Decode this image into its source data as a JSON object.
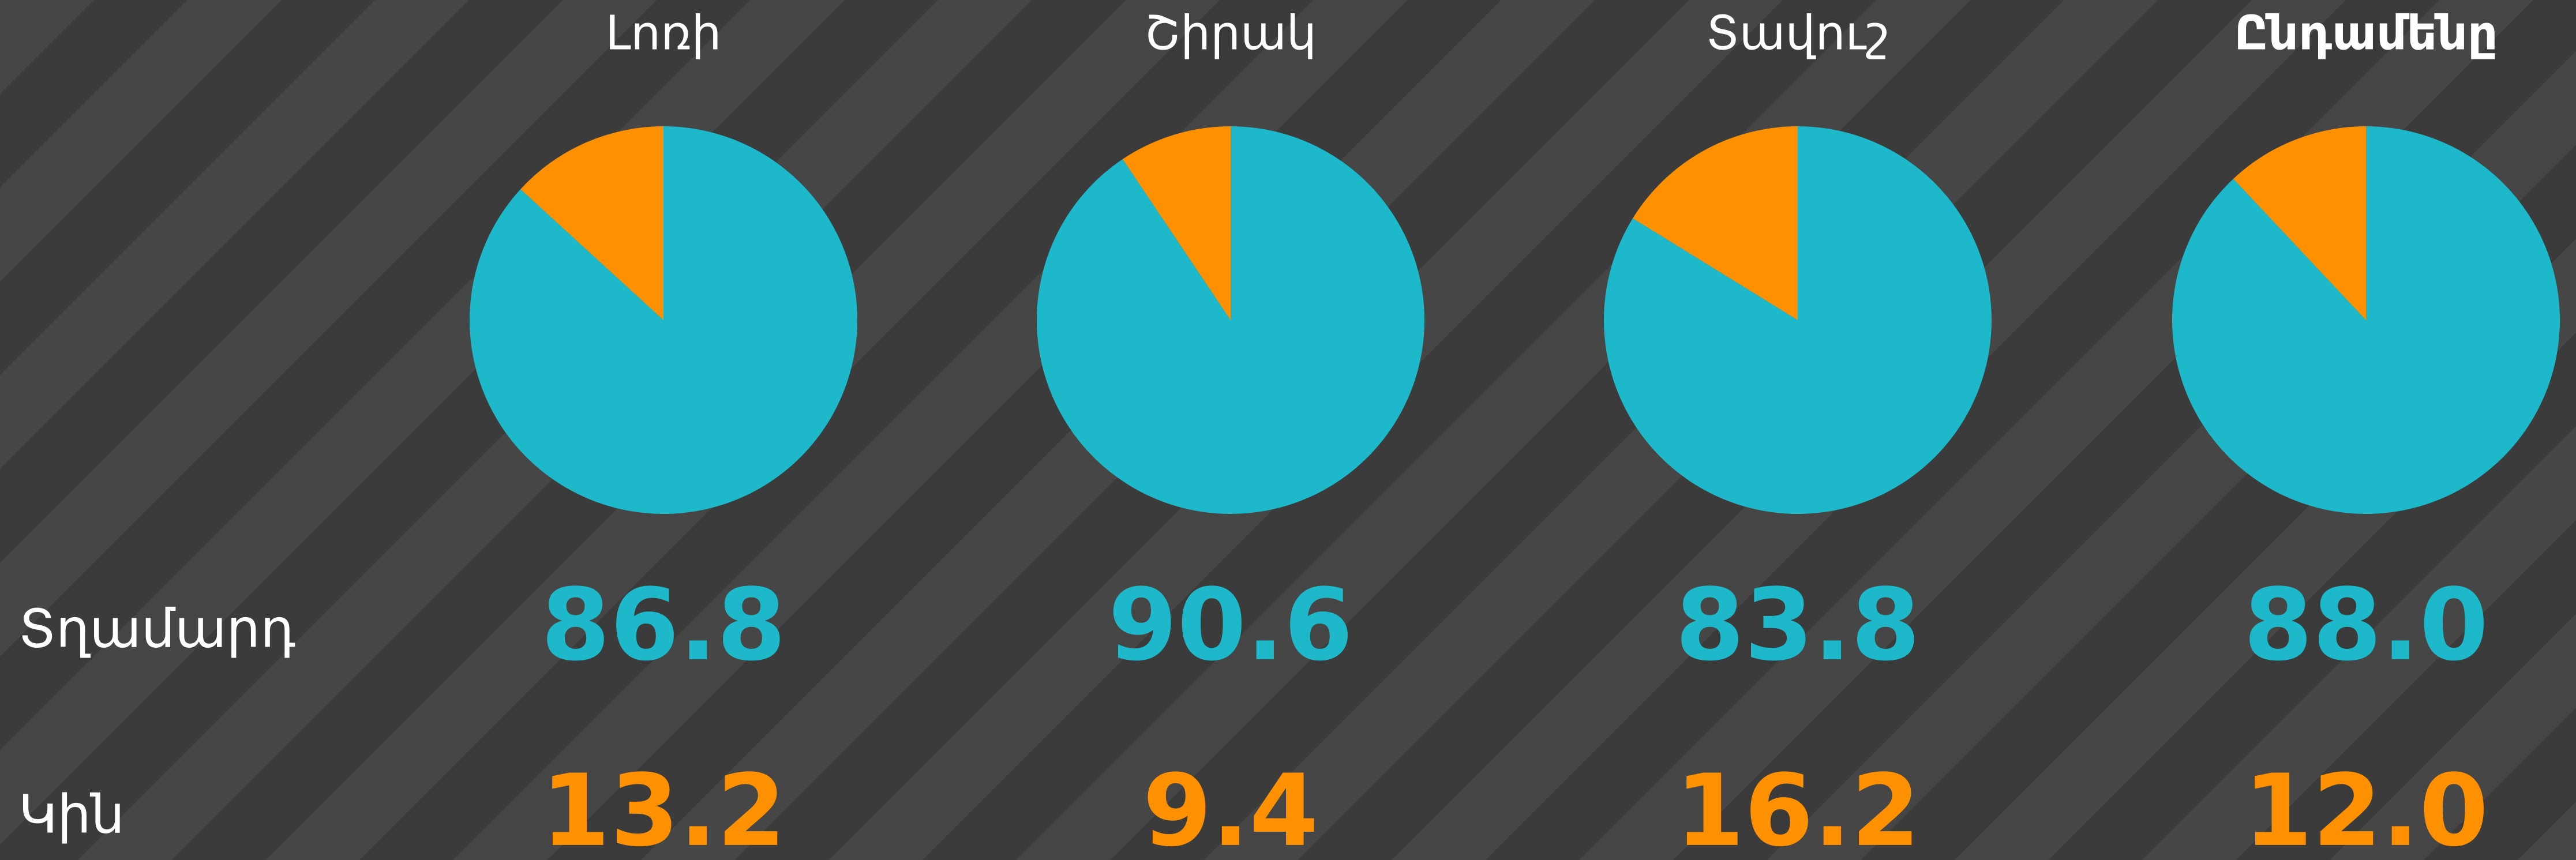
{
  "chart_data": {
    "type": "pie",
    "categories": [
      "Տղամարդ",
      "Կին"
    ],
    "colors": [
      "#1db8c9",
      "#ff9100"
    ],
    "series": [
      {
        "name": "Լոռի",
        "values": [
          86.8,
          13.2
        ],
        "value_labels": [
          "86.8",
          "13.2"
        ]
      },
      {
        "name": "Շիրակ",
        "values": [
          90.6,
          9.4
        ],
        "value_labels": [
          "90.6",
          "9.4"
        ]
      },
      {
        "name": "Տավուշ",
        "values": [
          83.8,
          16.2
        ],
        "value_labels": [
          "83.8",
          "16.2"
        ]
      },
      {
        "name": "Ընդամենը",
        "values": [
          88,
          12
        ],
        "value_labels": [
          "88.0",
          "12.0"
        ]
      }
    ]
  }
}
